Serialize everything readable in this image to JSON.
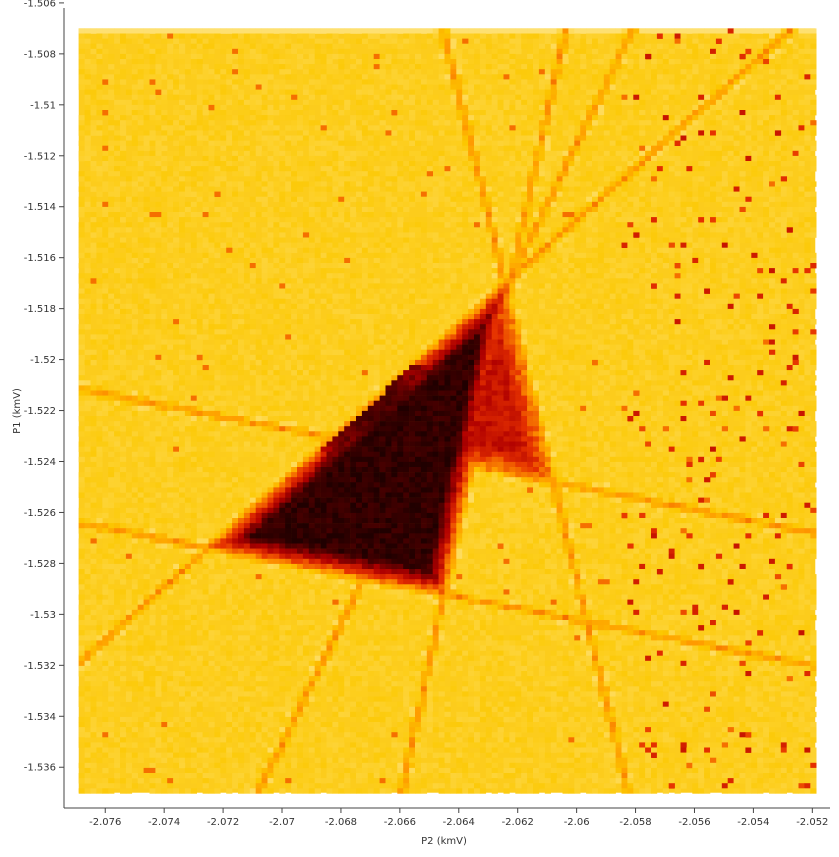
{
  "chart_data": {
    "type": "heatmap",
    "title": "",
    "xlabel": "P2 (kmV)",
    "ylabel": "P1 (kmV)",
    "xlim": [
      -2.0774,
      -2.0514
    ],
    "ylim": [
      -1.5376,
      -1.5062
    ],
    "data_extent": {
      "x": [
        -2.0769,
        -2.0519
      ],
      "y": [
        -1.537,
        -1.507
      ]
    },
    "x_ticks": [
      -2.076,
      -2.074,
      -2.072,
      -2.07,
      -2.068,
      -2.066,
      -2.064,
      -2.062,
      -2.06,
      -2.058,
      -2.056,
      -2.054,
      -2.052
    ],
    "x_tick_labels": [
      "-2.076",
      "-2.074",
      "-2.072",
      "-2.07",
      "-2.068",
      "-2.066",
      "-2.064",
      "-2.062",
      "-2.06",
      "-2.058",
      "-2.056",
      "-2.054",
      "-2.052"
    ],
    "y_ticks": [
      -1.506,
      -1.508,
      -1.51,
      -1.512,
      -1.514,
      -1.516,
      -1.518,
      -1.52,
      -1.522,
      -1.524,
      -1.526,
      -1.528,
      -1.53,
      -1.532,
      -1.534,
      -1.536
    ],
    "y_tick_labels": [
      "-1.506",
      "-1.508",
      "-1.51",
      "-1.512",
      "-1.514",
      "-1.516",
      "-1.518",
      "-1.52",
      "-1.522",
      "-1.524",
      "-1.526",
      "-1.528",
      "-1.53",
      "-1.532",
      "-1.534",
      "-1.536"
    ],
    "colormap": [
      "#ffe58a",
      "#fcc800",
      "#ff9900",
      "#e53000",
      "#b00000",
      "#5a0000",
      "#200000"
    ],
    "background_color": "#fccc1c",
    "grid": false,
    "legend": "none",
    "features": [
      {
        "name": "large triangle",
        "vertices": [
          [
            -2.0725,
            -1.5274
          ],
          [
            -2.0622,
            -1.5168
          ],
          [
            -2.0645,
            -1.5292
          ]
        ],
        "peak_level": 0.95,
        "dark_core": [
          -2.0664,
          -1.5226
        ]
      },
      {
        "name": "small triangle",
        "vertices": [
          [
            -2.0652,
            -1.5238
          ],
          [
            -2.0624,
            -1.5172
          ],
          [
            -2.0608,
            -1.5248
          ]
        ],
        "peak_level": 0.6
      }
    ]
  }
}
